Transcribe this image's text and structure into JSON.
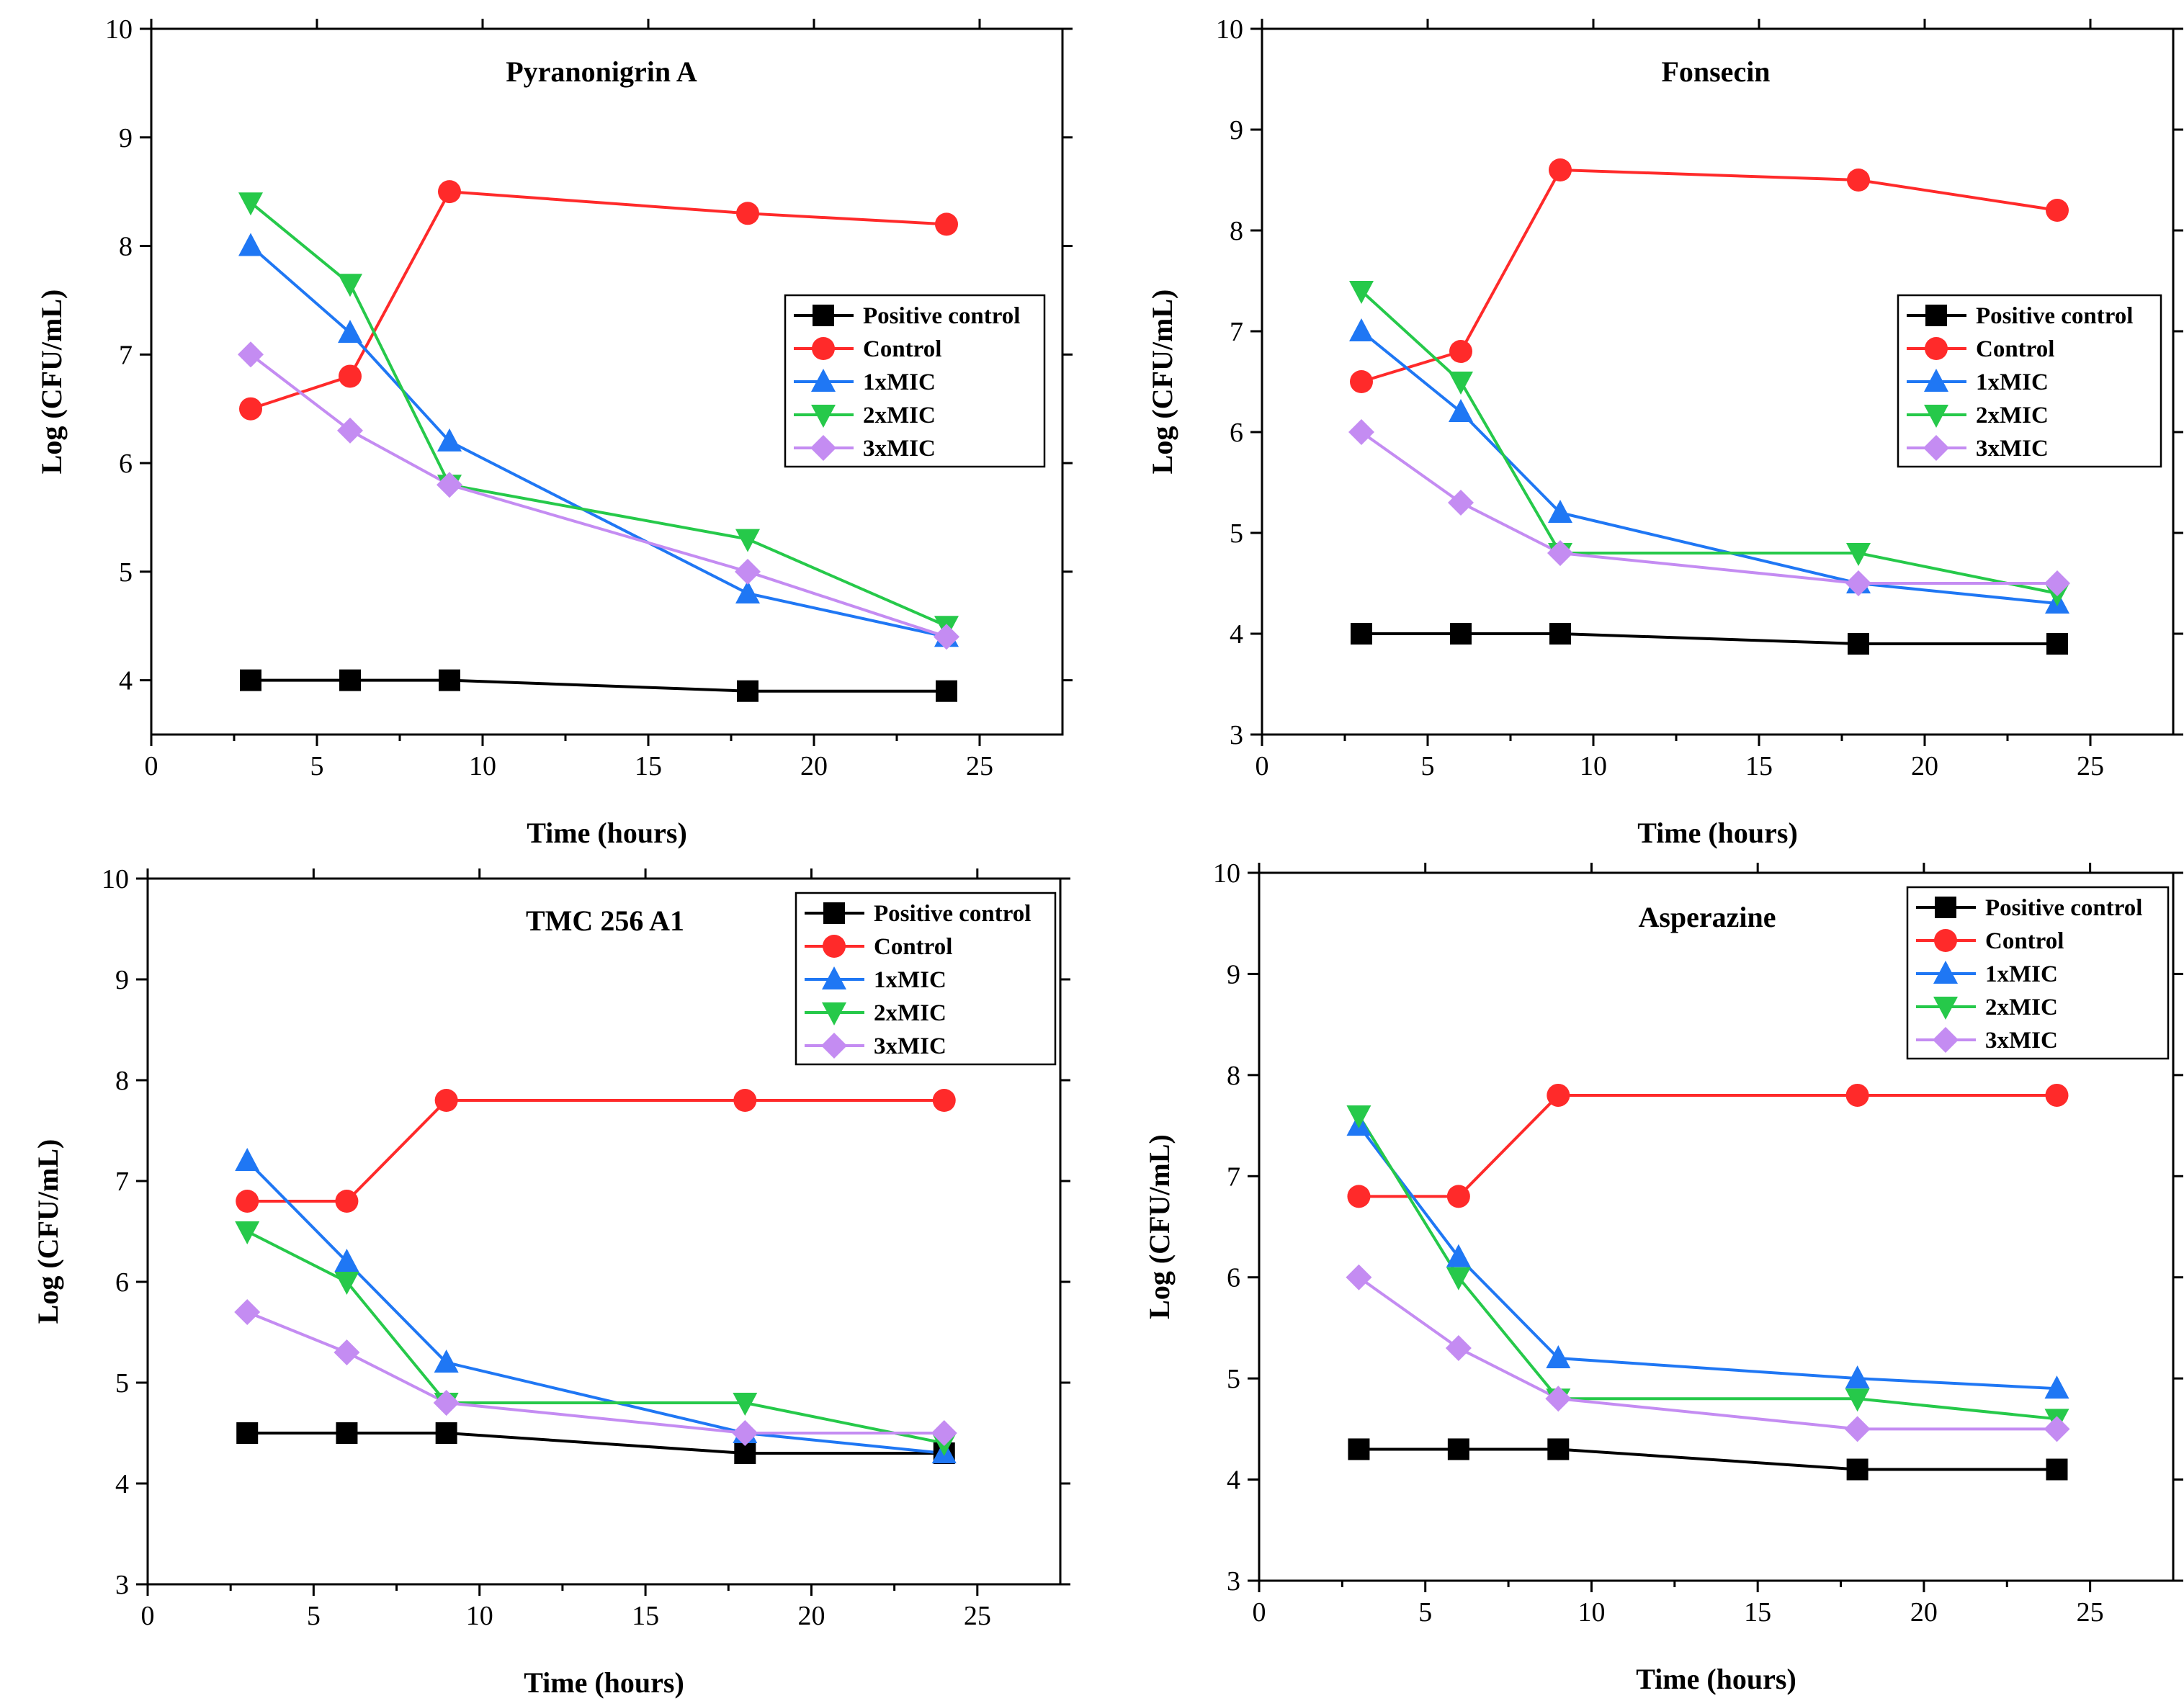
{
  "series_style": [
    {
      "name": "Positive control",
      "color": "#000000",
      "marker": "square"
    },
    {
      "name": "Control",
      "color": "#ff2a2a",
      "marker": "circle"
    },
    {
      "name": "1xMIC",
      "color": "#1f77f4",
      "marker": "triangle-up"
    },
    {
      "name": "2xMIC",
      "color": "#26c94a",
      "marker": "triangle-down"
    },
    {
      "name": "3xMIC",
      "color": "#c48cf2",
      "marker": "diamond"
    }
  ],
  "chart_data": [
    {
      "type": "line",
      "title": "Pyranonigrin A",
      "xlabel": "Time (hours)",
      "ylabel": "Log (CFU/mL)",
      "xlim": [
        0,
        27.5
      ],
      "ylim": [
        3.5,
        10
      ],
      "xticks": [
        0,
        5,
        10,
        15,
        20,
        25
      ],
      "yticks": [
        4,
        5,
        6,
        7,
        8,
        9,
        10
      ],
      "legend_position": "right-middle",
      "x": [
        3,
        6,
        9,
        18,
        24
      ],
      "series": [
        {
          "name": "Positive control",
          "values": [
            4.0,
            4.0,
            4.0,
            3.9,
            3.9
          ]
        },
        {
          "name": "Control",
          "values": [
            6.5,
            6.8,
            8.5,
            8.3,
            8.2
          ]
        },
        {
          "name": "1xMIC",
          "values": [
            8.0,
            7.2,
            6.2,
            4.8,
            4.4
          ]
        },
        {
          "name": "2xMIC",
          "values": [
            8.4,
            7.65,
            5.8,
            5.3,
            4.5
          ]
        },
        {
          "name": "3xMIC",
          "values": [
            7.0,
            6.3,
            5.8,
            5.0,
            4.4
          ]
        }
      ]
    },
    {
      "type": "line",
      "title": "Fonsecin",
      "xlabel": "Time (hours)",
      "ylabel": "Log (CFU/mL)",
      "xlim": [
        0,
        27.5
      ],
      "ylim": [
        3,
        10
      ],
      "xticks": [
        0,
        5,
        10,
        15,
        20,
        25
      ],
      "yticks": [
        3,
        4,
        5,
        6,
        7,
        8,
        9,
        10
      ],
      "legend_position": "right-middle",
      "x": [
        3,
        6,
        9,
        18,
        24
      ],
      "series": [
        {
          "name": "Positive control",
          "values": [
            4.0,
            4.0,
            4.0,
            3.9,
            3.9
          ]
        },
        {
          "name": "Control",
          "values": [
            6.5,
            6.8,
            8.6,
            8.5,
            8.2
          ]
        },
        {
          "name": "1xMIC",
          "values": [
            7.0,
            6.2,
            5.2,
            4.5,
            4.3
          ]
        },
        {
          "name": "2xMIC",
          "values": [
            7.4,
            6.5,
            4.8,
            4.8,
            4.4
          ]
        },
        {
          "name": "3xMIC",
          "values": [
            6.0,
            5.3,
            4.8,
            4.5,
            4.5
          ]
        }
      ]
    },
    {
      "type": "line",
      "title": "TMC 256 A1",
      "xlabel": "Time (hours)",
      "ylabel": "Log (CFU/mL)",
      "xlim": [
        0,
        27.5
      ],
      "ylim": [
        3,
        10
      ],
      "xticks": [
        0,
        5,
        10,
        15,
        20,
        25
      ],
      "yticks": [
        3,
        4,
        5,
        6,
        7,
        8,
        9,
        10
      ],
      "legend_position": "top-right",
      "x": [
        3,
        6,
        9,
        18,
        24
      ],
      "series": [
        {
          "name": "Positive control",
          "values": [
            4.5,
            4.5,
            4.5,
            4.3,
            4.3
          ]
        },
        {
          "name": "Control",
          "values": [
            6.8,
            6.8,
            7.8,
            7.8,
            7.8
          ]
        },
        {
          "name": "1xMIC",
          "values": [
            7.2,
            6.2,
            5.2,
            4.5,
            4.3
          ]
        },
        {
          "name": "2xMIC",
          "values": [
            6.5,
            6.0,
            4.8,
            4.8,
            4.4
          ]
        },
        {
          "name": "3xMIC",
          "values": [
            5.7,
            5.3,
            4.8,
            4.5,
            4.5
          ]
        }
      ]
    },
    {
      "type": "line",
      "title": "Asperazine",
      "xlabel": "Time (hours)",
      "ylabel": "Log (CFU/mL)",
      "xlim": [
        0,
        27.5
      ],
      "ylim": [
        3,
        10
      ],
      "xticks": [
        0,
        5,
        10,
        15,
        20,
        25
      ],
      "yticks": [
        3,
        4,
        5,
        6,
        7,
        8,
        9,
        10
      ],
      "legend_position": "top-right",
      "x": [
        3,
        6,
        9,
        18,
        24
      ],
      "series": [
        {
          "name": "Positive control",
          "values": [
            4.3,
            4.3,
            4.3,
            4.1,
            4.1
          ]
        },
        {
          "name": "Control",
          "values": [
            6.8,
            6.8,
            7.8,
            7.8,
            7.8
          ]
        },
        {
          "name": "1xMIC",
          "values": [
            7.5,
            6.2,
            5.2,
            5.0,
            4.9
          ]
        },
        {
          "name": "2xMIC",
          "values": [
            7.6,
            6.0,
            4.8,
            4.8,
            4.6
          ]
        },
        {
          "name": "3xMIC",
          "values": [
            6.0,
            5.3,
            4.8,
            4.5,
            4.5
          ]
        }
      ]
    }
  ]
}
